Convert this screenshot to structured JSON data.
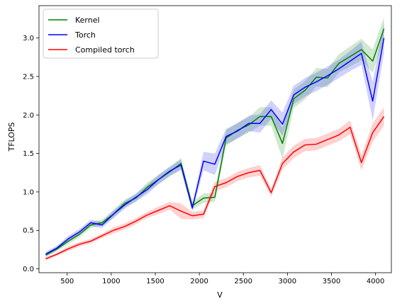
{
  "chart_data": {
    "type": "line",
    "title": "",
    "xlabel": "V",
    "ylabel": "TFLOPS",
    "xlim": [
      180,
      4180
    ],
    "ylim": [
      -0.05,
      3.42
    ],
    "xticks": [
      500,
      1000,
      1500,
      2000,
      2500,
      3000,
      3500,
      4000
    ],
    "yticks": [
      0.0,
      0.5,
      1.0,
      1.5,
      2.0,
      2.5,
      3.0
    ],
    "xtick_labels": [
      "500",
      "1000",
      "1500",
      "2000",
      "2500",
      "3000",
      "3500",
      "4000"
    ],
    "ytick_labels": [
      "0.0",
      "0.5",
      "1.0",
      "1.5",
      "2.0",
      "2.5",
      "3.0"
    ],
    "grid": false,
    "legend_position": "top-left",
    "x": [
      256,
      384,
      512,
      640,
      768,
      896,
      1024,
      1152,
      1280,
      1408,
      1536,
      1664,
      1792,
      1920,
      2048,
      2176,
      2304,
      2432,
      2560,
      2688,
      2816,
      2944,
      3072,
      3200,
      3328,
      3456,
      3584,
      3712,
      3840,
      3968,
      4096
    ],
    "series": [
      {
        "name": "Kernel",
        "color": "#008000",
        "values": [
          0.18,
          0.26,
          0.36,
          0.45,
          0.57,
          0.6,
          0.71,
          0.85,
          0.92,
          1.06,
          1.16,
          1.26,
          1.37,
          0.82,
          0.92,
          0.93,
          1.7,
          1.8,
          1.87,
          1.98,
          1.98,
          1.63,
          2.21,
          2.32,
          2.49,
          2.48,
          2.67,
          2.76,
          2.85,
          2.7,
          3.12
        ],
        "band": [
          0.03,
          0.03,
          0.04,
          0.04,
          0.04,
          0.04,
          0.05,
          0.05,
          0.05,
          0.06,
          0.06,
          0.06,
          0.07,
          0.05,
          0.06,
          0.06,
          0.1,
          0.1,
          0.1,
          0.12,
          0.12,
          0.2,
          0.12,
          0.12,
          0.12,
          0.12,
          0.12,
          0.13,
          0.14,
          0.15,
          0.15
        ]
      },
      {
        "name": "Torch",
        "color": "#0000ff",
        "values": [
          0.19,
          0.27,
          0.39,
          0.48,
          0.6,
          0.57,
          0.71,
          0.83,
          0.93,
          1.03,
          1.16,
          1.27,
          1.35,
          0.79,
          1.4,
          1.36,
          1.72,
          1.79,
          1.89,
          1.89,
          2.07,
          1.88,
          2.26,
          2.36,
          2.43,
          2.51,
          2.6,
          2.7,
          2.8,
          2.18,
          3.0
        ],
        "band": [
          0.03,
          0.03,
          0.04,
          0.04,
          0.04,
          0.04,
          0.05,
          0.05,
          0.05,
          0.06,
          0.06,
          0.06,
          0.07,
          0.05,
          0.12,
          0.14,
          0.1,
          0.1,
          0.1,
          0.12,
          0.12,
          0.15,
          0.12,
          0.12,
          0.12,
          0.12,
          0.12,
          0.13,
          0.15,
          0.25,
          0.2
        ]
      },
      {
        "name": "Compiled torch",
        "color": "#ff0000",
        "values": [
          0.13,
          0.19,
          0.26,
          0.32,
          0.36,
          0.43,
          0.5,
          0.55,
          0.62,
          0.7,
          0.76,
          0.82,
          0.75,
          0.69,
          0.71,
          1.07,
          1.12,
          1.2,
          1.25,
          1.28,
          0.99,
          1.37,
          1.52,
          1.61,
          1.62,
          1.68,
          1.74,
          1.84,
          1.38,
          1.77,
          1.98
        ],
        "band": [
          0.02,
          0.02,
          0.03,
          0.03,
          0.03,
          0.03,
          0.04,
          0.04,
          0.04,
          0.04,
          0.05,
          0.05,
          0.1,
          0.05,
          0.05,
          0.06,
          0.06,
          0.06,
          0.06,
          0.07,
          0.05,
          0.08,
          0.08,
          0.08,
          0.08,
          0.08,
          0.08,
          0.09,
          0.1,
          0.12,
          0.12
        ]
      }
    ]
  }
}
